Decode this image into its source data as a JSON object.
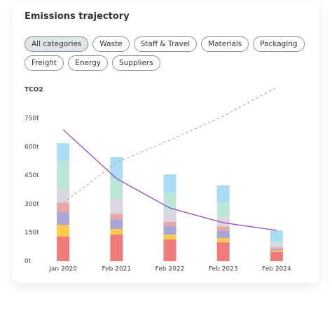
{
  "title": "Emissions trajectory",
  "filters": [
    "All categories",
    "Waste",
    "Staff & Travel",
    "Materials",
    "Packaging",
    "Freight",
    "Energy",
    "Suppliers"
  ],
  "selected_filter": 0,
  "chart_data": {
    "type": "bar",
    "stacked": true,
    "y_label": "TCO2",
    "categories": [
      "Jan 2020",
      "Feb 2021",
      "Feb 2022",
      "Feb 2023",
      "Feb 2024"
    ],
    "ylim": [
      0,
      925
    ],
    "yticks": [
      {
        "value": 0,
        "label": "0t"
      },
      {
        "value": 150,
        "label": "150t"
      },
      {
        "value": 300,
        "label": "300t"
      },
      {
        "value": 450,
        "label": "450t"
      },
      {
        "value": 600,
        "label": "600t"
      },
      {
        "value": 750,
        "label": "750t"
      }
    ],
    "series": [
      {
        "type": "bar",
        "color": "#ef7b7b",
        "values": [
          129,
          140,
          114,
          99,
          48
        ]
      },
      {
        "type": "bar",
        "color": "#fdc94f",
        "values": [
          62,
          29,
          26,
          22,
          7
        ]
      },
      {
        "type": "bar",
        "color": "#a7a6d6",
        "values": [
          66,
          51,
          44,
          40,
          7
        ]
      },
      {
        "type": "bar",
        "color": "#eaa5a5",
        "values": [
          51,
          29,
          22,
          22,
          11
        ]
      },
      {
        "type": "bar",
        "color": "#dcd6e2",
        "values": [
          66,
          77,
          62,
          51,
          18
        ]
      },
      {
        "type": "bar",
        "color": "#bde6da",
        "values": [
          154,
          107,
          92,
          77,
          11
        ]
      },
      {
        "type": "bar",
        "color": "#aadcf6",
        "values": [
          92,
          114,
          96,
          88,
          59
        ]
      },
      {
        "type": "line",
        "color": "#9a4fb8",
        "dashed": false,
        "values": [
          691,
          434,
          279,
          202,
          162
        ]
      },
      {
        "type": "line",
        "color": "#a9a9a9",
        "dashed": true,
        "values": [
          305,
          518,
          636,
          761,
          912
        ]
      }
    ]
  }
}
